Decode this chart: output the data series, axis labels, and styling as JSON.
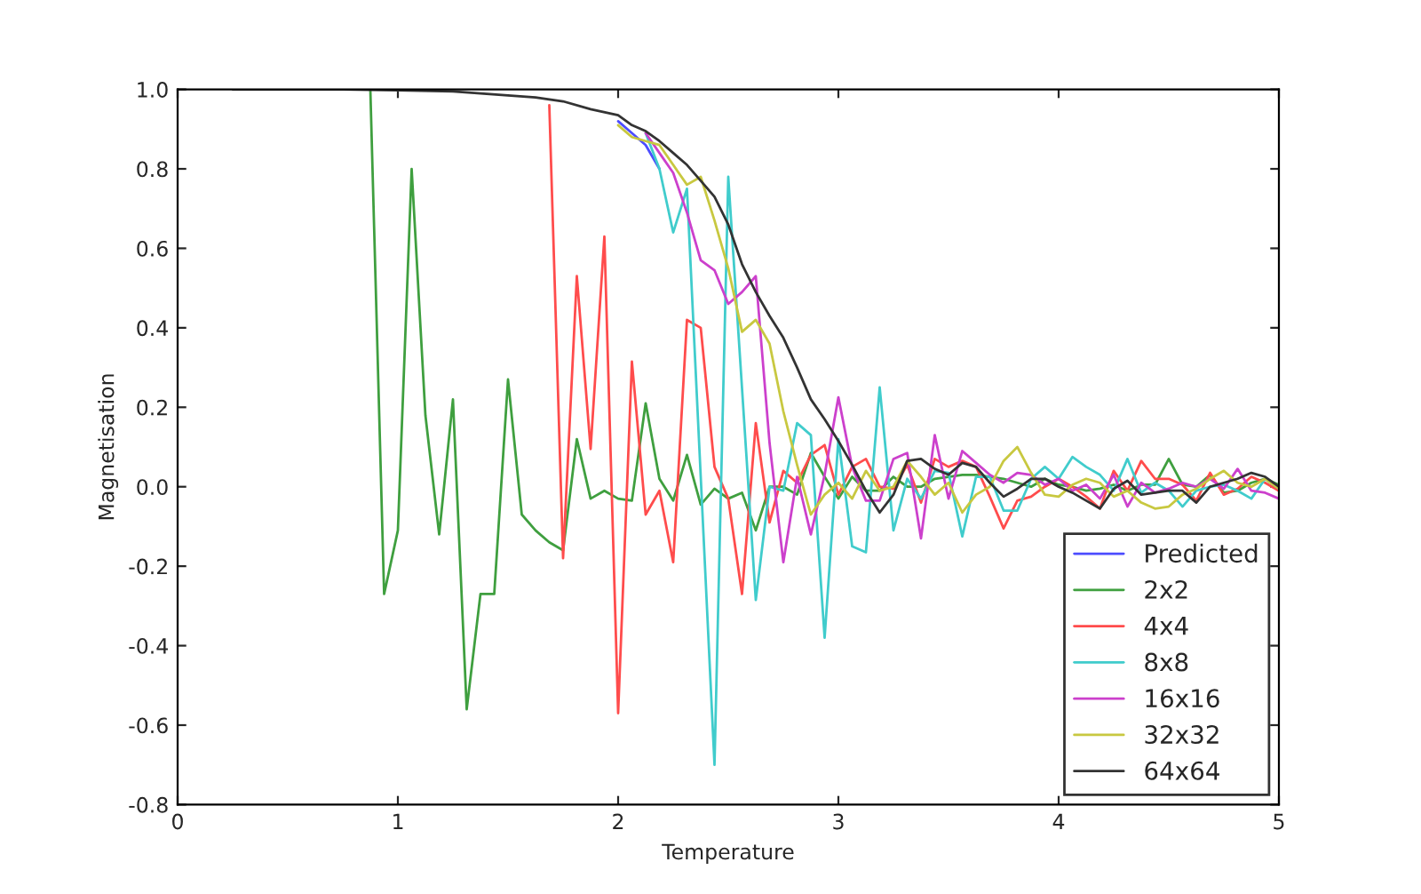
{
  "chart_data": {
    "type": "line",
    "xlabel": "Temperature",
    "ylabel": "Magnetisation",
    "xlim": [
      0,
      5
    ],
    "xticks": [
      0,
      1,
      2,
      3,
      4,
      5
    ],
    "ylim": [
      -0.8,
      1.0
    ],
    "yticks": [
      {
        "value": -0.8,
        "label": "-0.8"
      },
      {
        "value": -0.6,
        "label": "-0.6"
      },
      {
        "value": -0.4,
        "label": "-0.4"
      },
      {
        "value": -0.2,
        "label": "-0.2"
      },
      {
        "value": 0,
        "label": "0.0"
      },
      {
        "value": 0.2,
        "label": "0.2"
      },
      {
        "value": 0.4,
        "label": "0.4"
      },
      {
        "value": 0.6,
        "label": "0.6"
      },
      {
        "value": 0.8,
        "label": "0.8"
      },
      {
        "value": 1.0,
        "label": "1.0"
      }
    ],
    "grid": false,
    "legend": "bottom right",
    "line_style": "solid",
    "marker": "none",
    "series": [
      {
        "name": "Predicted",
        "color": "#4c4cff",
        "x": [
          2.0,
          2.0625,
          2.125,
          2.1875
        ],
        "values": [
          0.92,
          0.89,
          0.86,
          0.8
        ]
      },
      {
        "name": "2x2",
        "color": "#3f9f3f",
        "x": [
          0.875,
          0.9375,
          1.0,
          1.0625,
          1.125,
          1.1875,
          1.25,
          1.3125,
          1.375,
          1.4375,
          1.5,
          1.5625,
          1.625,
          1.6875,
          1.75,
          1.8125,
          1.875,
          1.9375,
          2.0,
          2.0625,
          2.125,
          2.1875,
          2.25,
          2.3125,
          2.375,
          2.4375,
          2.5,
          2.5625,
          2.625,
          2.6875,
          2.75,
          2.8125,
          2.875,
          2.9375,
          3.0,
          3.0625,
          3.125,
          3.1875,
          3.25,
          3.3125,
          3.375,
          3.4375,
          3.5,
          3.5625,
          3.625,
          3.6875,
          3.75,
          3.8125,
          3.875,
          3.9375,
          4.0,
          4.0625,
          4.125,
          4.1875,
          4.25,
          4.3125,
          4.375,
          4.4375,
          4.5,
          4.5625,
          4.625,
          4.6875,
          4.75,
          4.8125,
          4.875,
          4.9375,
          5.0
        ],
        "values": [
          1,
          -0.27,
          -0.11,
          0.8,
          0.18,
          -0.12,
          0.22,
          -0.56,
          -0.27,
          -0.27,
          0.27,
          -0.07,
          -0.11,
          -0.14,
          -0.16,
          0.12,
          -0.03,
          -0.01,
          -0.03,
          -0.035,
          0.21,
          0.02,
          -0.035,
          0.08,
          -0.045,
          -0.005,
          -0.03,
          -0.015,
          -0.11,
          0.0,
          0.0,
          -0.02,
          0.085,
          0.025,
          -0.03,
          0.025,
          -0.01,
          -0.01,
          0.025,
          0.0,
          0.0,
          0.02,
          0.025,
          0.03,
          0.03,
          0.025,
          0.02,
          0.01,
          0.0,
          0.02,
          0.005,
          0.0,
          -0.01,
          -0.005,
          0.005,
          -0.01,
          0.005,
          0.005,
          0.07,
          0.005,
          0.0,
          0.03,
          -0.015,
          -0.01,
          0.01,
          0.02,
          0.005
        ]
      },
      {
        "name": "4x4",
        "color": "#ff4c4c",
        "x": [
          1.6875,
          1.75,
          1.8125,
          1.875,
          1.9375,
          2.0,
          2.0625,
          2.125,
          2.1875,
          2.25,
          2.3125,
          2.375,
          2.4375,
          2.5,
          2.5625,
          2.625,
          2.6875,
          2.75,
          2.8125,
          2.875,
          2.9375,
          3.0,
          3.0625,
          3.125,
          3.1875,
          3.25,
          3.3125,
          3.375,
          3.4375,
          3.5,
          3.5625,
          3.625,
          3.6875,
          3.75,
          3.8125,
          3.875,
          3.9375,
          4.0,
          4.0625,
          4.125,
          4.1875,
          4.25,
          4.3125,
          4.375,
          4.4375,
          4.5,
          4.5625,
          4.625,
          4.6875,
          4.75,
          4.8125,
          4.875,
          4.9375,
          5.0
        ],
        "values": [
          0.96,
          -0.18,
          0.53,
          0.095,
          0.63,
          -0.57,
          0.315,
          -0.07,
          -0.01,
          -0.19,
          0.42,
          0.4,
          0.05,
          -0.03,
          -0.27,
          0.16,
          -0.09,
          0.04,
          0.01,
          0.08,
          0.105,
          -0.02,
          0.05,
          0.07,
          0.0,
          -0.005,
          0.055,
          -0.04,
          0.07,
          0.05,
          0.065,
          0.05,
          -0.025,
          -0.105,
          -0.035,
          -0.025,
          0.0,
          0.02,
          0.0,
          -0.025,
          -0.055,
          0.04,
          -0.01,
          0.065,
          0.02,
          0.02,
          0.005,
          -0.035,
          0.035,
          -0.02,
          -0.005,
          0.025,
          0.01,
          -0.01
        ]
      },
      {
        "name": "8x8",
        "color": "#40cccc",
        "x": [
          2.125,
          2.1875,
          2.25,
          2.3125,
          2.4375,
          2.5,
          2.625,
          2.6875,
          2.75,
          2.8125,
          2.875,
          2.9375,
          3.0,
          3.0625,
          3.125,
          3.1875,
          3.25,
          3.3125,
          3.375,
          3.4375,
          3.5,
          3.5625,
          3.625,
          3.6875,
          3.75,
          3.8125,
          3.875,
          3.9375,
          4.0,
          4.0625,
          4.125,
          4.1875,
          4.25,
          4.3125,
          4.375,
          4.4375,
          4.5,
          4.5625,
          4.625,
          4.6875,
          4.75,
          4.8125,
          4.875,
          4.9375,
          5.0
        ],
        "values": [
          0.89,
          0.8,
          0.64,
          0.75,
          -0.7,
          0.78,
          -0.285,
          0.0,
          -0.01,
          0.16,
          0.13,
          -0.38,
          0.12,
          -0.15,
          -0.165,
          0.25,
          -0.11,
          0.02,
          -0.03,
          0.04,
          0.035,
          -0.125,
          0.025,
          0.025,
          -0.06,
          -0.06,
          0.02,
          0.05,
          0.02,
          0.075,
          0.05,
          0.03,
          -0.01,
          0.07,
          -0.015,
          0.01,
          -0.01,
          -0.05,
          -0.01,
          0.0,
          0.005,
          -0.01,
          -0.03,
          0.02,
          -0.005
        ]
      },
      {
        "name": "16x16",
        "color": "#cc40cc",
        "x": [
          2.125,
          2.1875,
          2.25,
          2.3125,
          2.375,
          2.4375,
          2.5,
          2.5625,
          2.625,
          2.6875,
          2.75,
          2.8125,
          2.875,
          2.9375,
          3.0,
          3.0625,
          3.125,
          3.1875,
          3.25,
          3.3125,
          3.375,
          3.4375,
          3.5,
          3.5625,
          3.625,
          3.6875,
          3.75,
          3.8125,
          3.875,
          3.9375,
          4.0,
          4.0625,
          4.125,
          4.1875,
          4.25,
          4.3125,
          4.375,
          4.4375,
          4.5,
          4.5625,
          4.625,
          4.6875,
          4.75,
          4.8125,
          4.875,
          4.9375,
          5.0
        ],
        "values": [
          0.89,
          0.84,
          0.79,
          0.69,
          0.57,
          0.545,
          0.46,
          0.49,
          0.53,
          0.11,
          -0.19,
          0.025,
          -0.12,
          0.03,
          0.225,
          0.05,
          -0.035,
          -0.035,
          0.07,
          0.085,
          -0.13,
          0.13,
          -0.03,
          0.09,
          0.06,
          0.03,
          0.01,
          0.035,
          0.03,
          0.005,
          0.02,
          -0.01,
          0.005,
          -0.03,
          0.03,
          -0.05,
          0.01,
          -0.015,
          -0.005,
          0.01,
          0.0,
          0.02,
          -0.005,
          0.045,
          -0.01,
          -0.015,
          -0.03
        ]
      },
      {
        "name": "32x32",
        "color": "#c8c840",
        "x": [
          2.0,
          2.0625,
          2.125,
          2.1875,
          2.25,
          2.3125,
          2.375,
          2.4375,
          2.5,
          2.5625,
          2.625,
          2.6875,
          2.75,
          2.8125,
          2.875,
          2.9375,
          3.0,
          3.0625,
          3.125,
          3.1875,
          3.25,
          3.3125,
          3.375,
          3.4375,
          3.5,
          3.5625,
          3.625,
          3.6875,
          3.75,
          3.8125,
          3.875,
          3.9375,
          4.0,
          4.0625,
          4.125,
          4.1875,
          4.25,
          4.3125,
          4.375,
          4.4375,
          4.5,
          4.5625,
          4.625,
          4.6875,
          4.75,
          4.8125,
          4.875,
          4.9375,
          5.0
        ],
        "values": [
          0.91,
          0.88,
          0.87,
          0.86,
          0.81,
          0.76,
          0.78,
          0.67,
          0.55,
          0.39,
          0.42,
          0.36,
          0.19,
          0.055,
          -0.07,
          -0.02,
          0.01,
          -0.03,
          0.04,
          -0.01,
          0.0,
          0.065,
          0.025,
          -0.02,
          0.01,
          -0.065,
          -0.02,
          0.0,
          0.065,
          0.1,
          0.035,
          -0.02,
          -0.025,
          0.005,
          0.02,
          0.01,
          -0.025,
          -0.01,
          -0.04,
          -0.055,
          -0.05,
          -0.02,
          -0.005,
          0.02,
          0.04,
          0.01,
          0.0,
          0.02,
          -0.005
        ]
      },
      {
        "name": "64x64",
        "color": "#333333",
        "x": [
          0.25,
          0.5,
          0.75,
          1.0,
          1.25,
          1.5,
          1.625,
          1.75,
          1.875,
          2.0,
          2.0625,
          2.125,
          2.1875,
          2.25,
          2.3125,
          2.375,
          2.4375,
          2.5,
          2.5625,
          2.625,
          2.6875,
          2.75,
          2.8125,
          2.875,
          2.9375,
          3.0,
          3.0625,
          3.125,
          3.1875,
          3.25,
          3.3125,
          3.375,
          3.4375,
          3.5,
          3.5625,
          3.625,
          3.6875,
          3.75,
          3.8125,
          3.875,
          3.9375,
          4.0,
          4.0625,
          4.125,
          4.1875,
          4.25,
          4.3125,
          4.375,
          4.4375,
          4.5,
          4.5625,
          4.625,
          4.6875,
          4.75,
          4.8125,
          4.875,
          4.9375,
          5.0
        ],
        "values": [
          1,
          1,
          1,
          0.998,
          0.995,
          0.985,
          0.98,
          0.97,
          0.95,
          0.935,
          0.91,
          0.895,
          0.87,
          0.84,
          0.81,
          0.77,
          0.73,
          0.66,
          0.56,
          0.49,
          0.43,
          0.375,
          0.3,
          0.22,
          0.17,
          0.115,
          0.055,
          -0.01,
          -0.065,
          -0.02,
          0.065,
          0.07,
          0.045,
          0.03,
          0.06,
          0.05,
          0.01,
          -0.025,
          -0.005,
          0.02,
          0.02,
          0.0,
          -0.015,
          -0.035,
          -0.055,
          -0.005,
          0.015,
          -0.02,
          -0.015,
          -0.01,
          -0.01,
          -0.04,
          0.0,
          0.01,
          0.02,
          0.035,
          0.025,
          0.0
        ]
      }
    ]
  }
}
